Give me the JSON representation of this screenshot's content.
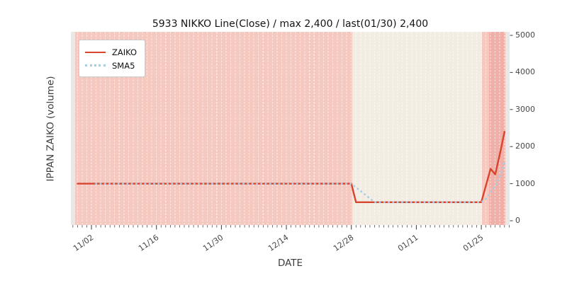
{
  "title": "5933 NIKKO Line(Close) / max 2,400 / last(01/30) 2,400",
  "axes": {
    "xlabel": "DATE",
    "ylabel": "IPPAN ZAIKO (volume)",
    "x_ticks": [
      "11/02",
      "11/16",
      "11/30",
      "12/14",
      "12/28",
      "01/11",
      "01/25"
    ],
    "y_ticks": [
      "0",
      "1000",
      "2000",
      "3000",
      "4000",
      "5000"
    ]
  },
  "legend": [
    {
      "label": "ZAIKO",
      "style": "solid-line",
      "color": "#d8452e"
    },
    {
      "label": "SMA5",
      "style": "dotted-line",
      "color": "#a5cde3"
    }
  ],
  "colors": {
    "zaiko_line": "#d8452e",
    "sma5_line": "#a5cde3",
    "band_pink": "#f5c8c0",
    "band_cream": "#f2ece3",
    "band_dark_pink": "#f1b0a7",
    "plot_background": "#e8e8e8",
    "tick": "#3a3a3a"
  },
  "chart_data": {
    "type": "line",
    "title": "5933 NIKKO Line(Close) / max 2,400 / last(01/30) 2,400",
    "xlabel": "DATE",
    "ylabel": "IPPAN ZAIKO (volume)",
    "max_value": 2400,
    "last_date": "01/30",
    "last_value": 2400,
    "ylim": [
      -115,
      5095
    ],
    "grid": "daily vertical white dashed lines",
    "legend_position": "upper left",
    "x": [
      "10/30",
      "10/31",
      "11/01",
      "11/02",
      "11/03",
      "11/04",
      "11/05",
      "11/06",
      "11/07",
      "11/08",
      "11/09",
      "11/10",
      "11/11",
      "11/12",
      "11/13",
      "11/14",
      "11/15",
      "11/16",
      "11/17",
      "11/18",
      "11/19",
      "11/20",
      "11/21",
      "11/22",
      "11/23",
      "11/24",
      "11/25",
      "11/26",
      "11/27",
      "11/28",
      "11/29",
      "11/30",
      "12/01",
      "12/02",
      "12/03",
      "12/04",
      "12/05",
      "12/06",
      "12/07",
      "12/08",
      "12/09",
      "12/10",
      "12/11",
      "12/12",
      "12/13",
      "12/14",
      "12/15",
      "12/16",
      "12/17",
      "12/18",
      "12/19",
      "12/20",
      "12/21",
      "12/22",
      "12/23",
      "12/24",
      "12/25",
      "12/26",
      "12/27",
      "12/28",
      "12/29",
      "12/30",
      "12/31",
      "01/01",
      "01/02",
      "01/03",
      "01/04",
      "01/05",
      "01/06",
      "01/07",
      "01/08",
      "01/09",
      "01/10",
      "01/11",
      "01/12",
      "01/13",
      "01/14",
      "01/15",
      "01/16",
      "01/17",
      "01/18",
      "01/19",
      "01/20",
      "01/21",
      "01/22",
      "01/23",
      "01/24",
      "01/25",
      "01/26",
      "01/27",
      "01/28",
      "01/29",
      "01/30"
    ],
    "xtick_days": [
      3,
      17,
      31,
      45,
      59,
      73,
      87
    ],
    "y_tick_values": [
      0,
      1000,
      2000,
      3000,
      4000,
      5000
    ],
    "series": [
      {
        "name": "ZAIKO",
        "values": [
          1000,
          1000,
          1000,
          1000,
          1000,
          1000,
          1000,
          1000,
          1000,
          1000,
          1000,
          1000,
          1000,
          1000,
          1000,
          1000,
          1000,
          1000,
          1000,
          1000,
          1000,
          1000,
          1000,
          1000,
          1000,
          1000,
          1000,
          1000,
          1000,
          1000,
          1000,
          1000,
          1000,
          1000,
          1000,
          1000,
          1000,
          1000,
          1000,
          1000,
          1000,
          1000,
          1000,
          1000,
          1000,
          1000,
          1000,
          1000,
          1000,
          1000,
          1000,
          1000,
          1000,
          1000,
          1000,
          1000,
          1000,
          1000,
          1000,
          1000,
          500,
          500,
          500,
          500,
          500,
          500,
          500,
          500,
          500,
          500,
          500,
          500,
          500,
          500,
          500,
          500,
          500,
          500,
          500,
          500,
          500,
          500,
          500,
          500,
          500,
          500,
          500,
          500,
          950,
          1400,
          1250,
          1800,
          2400
        ]
      },
      {
        "name": "SMA5",
        "values": [
          null,
          null,
          null,
          null,
          1000,
          1000,
          1000,
          1000,
          1000,
          1000,
          1000,
          1000,
          1000,
          1000,
          1000,
          1000,
          1000,
          1000,
          1000,
          1000,
          1000,
          1000,
          1000,
          1000,
          1000,
          1000,
          1000,
          1000,
          1000,
          1000,
          1000,
          1000,
          1000,
          1000,
          1000,
          1000,
          1000,
          1000,
          1000,
          1000,
          1000,
          1000,
          1000,
          1000,
          1000,
          1000,
          1000,
          1000,
          1000,
          1000,
          1000,
          1000,
          1000,
          1000,
          1000,
          1000,
          1000,
          1000,
          1000,
          1000,
          900,
          800,
          700,
          600,
          500,
          500,
          500,
          500,
          500,
          500,
          500,
          500,
          500,
          500,
          500,
          500,
          500,
          500,
          500,
          500,
          500,
          500,
          500,
          500,
          500,
          500,
          500,
          500,
          590,
          770,
          920,
          1180,
          1560
        ]
      }
    ],
    "bands": [
      {
        "x0_day": -0.52,
        "x1_day": 59.15,
        "color": "#f5c8c0",
        "name": "pink-span-1"
      },
      {
        "x0_day": 59.15,
        "x1_day": 87.14,
        "color": "#f2ece3",
        "name": "cream-span"
      },
      {
        "x0_day": 87.14,
        "x1_day": 88.74,
        "color": "#f5c8c0",
        "name": "pink-span-2"
      },
      {
        "x0_day": 88.74,
        "x1_day": 92.22,
        "color": "#f1b0a7",
        "name": "dark-pink-span"
      }
    ]
  }
}
